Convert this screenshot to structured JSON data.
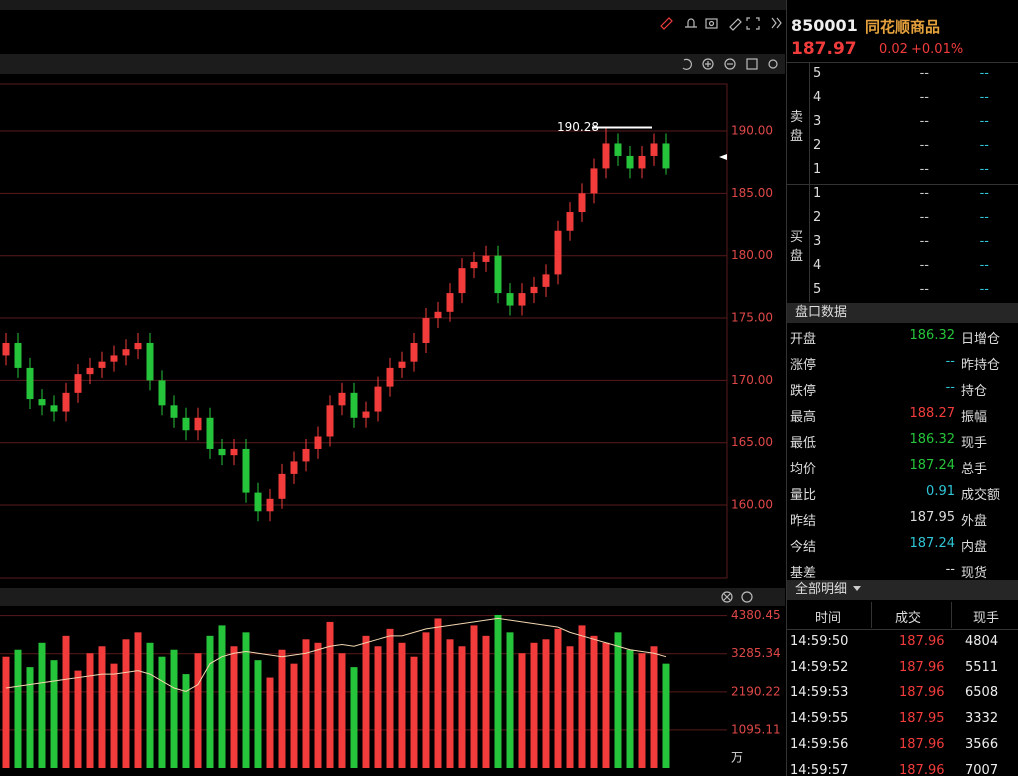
{
  "quote": {
    "code": "850001",
    "name": "同花顺商品",
    "price": "187.97",
    "change": "0.02",
    "change_pct": "+0.01%"
  },
  "order_book": {
    "sell_label": [
      "卖",
      "盘"
    ],
    "buy_label": [
      "买",
      "盘"
    ],
    "sell": [
      {
        "level": "5",
        "price": "--",
        "volume": "--"
      },
      {
        "level": "4",
        "price": "--",
        "volume": "--"
      },
      {
        "level": "3",
        "price": "--",
        "volume": "--"
      },
      {
        "level": "2",
        "price": "--",
        "volume": "--"
      },
      {
        "level": "1",
        "price": "--",
        "volume": "--"
      }
    ],
    "buy": [
      {
        "level": "1",
        "price": "--",
        "volume": "--"
      },
      {
        "level": "2",
        "price": "--",
        "volume": "--"
      },
      {
        "level": "3",
        "price": "--",
        "volume": "--"
      },
      {
        "level": "4",
        "price": "--",
        "volume": "--"
      },
      {
        "level": "5",
        "price": "--",
        "volume": "--"
      }
    ]
  },
  "stats_title": "盘口数据",
  "stats": [
    {
      "label": "开盘",
      "value": "186.32",
      "label2": "日增仓",
      "color": "#26c43a"
    },
    {
      "label": "涨停",
      "value": "--",
      "label2": "昨持仓",
      "color": "#2fc6d6"
    },
    {
      "label": "跌停",
      "value": "--",
      "label2": "持仓",
      "color": "#2fc6d6"
    },
    {
      "label": "最高",
      "value": "188.27",
      "label2": "振幅",
      "color": "#f23c3c"
    },
    {
      "label": "最低",
      "value": "186.32",
      "label2": "现手",
      "color": "#26c43a"
    },
    {
      "label": "均价",
      "value": "187.24",
      "label2": "总手",
      "color": "#26c43a"
    },
    {
      "label": "量比",
      "value": "0.91",
      "label2": "成交额",
      "color": "#2fc6d6"
    },
    {
      "label": "昨结",
      "value": "187.95",
      "label2": "外盘",
      "color": "#dddddd"
    },
    {
      "label": "今结",
      "value": "187.24",
      "label2": "内盘",
      "color": "#2fc6d6"
    },
    {
      "label": "基差",
      "value": "--",
      "label2": "现货",
      "color": "#dddddd"
    }
  ],
  "detail_title": "全部明细",
  "detail_headers": [
    "时间",
    "成交",
    "现手"
  ],
  "detail_rows": [
    [
      "14:59:50",
      "187.96",
      "4804"
    ],
    [
      "14:59:52",
      "187.96",
      "5511"
    ],
    [
      "14:59:53",
      "187.96",
      "6508"
    ],
    [
      "14:59:55",
      "187.95",
      "3332"
    ],
    [
      "14:59:56",
      "187.96",
      "3566"
    ],
    [
      "14:59:57",
      "187.96",
      "7007"
    ]
  ],
  "chart_data": [
    {
      "type": "candlestick",
      "up_color": "#f23c3c",
      "down_color": "#26c43a",
      "grid": true,
      "ylim": [
        154.15,
        193.69
      ],
      "yticks": [
        {
          "value": 160,
          "label": "160.00"
        },
        {
          "value": 165,
          "label": "165.00"
        },
        {
          "value": 170,
          "label": "170.00"
        },
        {
          "value": 175,
          "label": "175.00"
        },
        {
          "value": 180,
          "label": "180.00"
        },
        {
          "value": 185,
          "label": "185.00"
        },
        {
          "value": 190,
          "label": "190.00"
        }
      ],
      "max_marker": {
        "value": 190.28,
        "label": "190.28"
      },
      "open": [
        172,
        173,
        171,
        168.5,
        168,
        167.5,
        169,
        170.5,
        171,
        171.5,
        172,
        172.5,
        173,
        170,
        168,
        167,
        166,
        167,
        164.5,
        164,
        164.5,
        161,
        159.5,
        160.5,
        162.5,
        163.5,
        164.5,
        165.5,
        168,
        169,
        167,
        167.5,
        169.5,
        171,
        171.5,
        173,
        175,
        175.5,
        177,
        179,
        179.5,
        180,
        177,
        176,
        177,
        177.5,
        178.5,
        182,
        183.5,
        185,
        187,
        189,
        188,
        187,
        188,
        189
      ],
      "close": [
        173,
        171,
        168.5,
        168,
        167.5,
        169,
        170.5,
        171,
        171.5,
        172,
        172.5,
        173,
        170,
        168,
        167,
        166,
        167,
        164.5,
        164,
        164.5,
        161,
        159.5,
        160.5,
        162.5,
        163.5,
        164.5,
        165.5,
        168,
        169,
        167,
        167.5,
        169.5,
        171,
        171.5,
        173,
        175,
        175.5,
        177,
        179,
        179.5,
        180,
        177,
        176,
        177,
        177.5,
        178.5,
        182,
        183.5,
        185,
        187,
        189,
        188,
        187,
        188,
        189,
        187
      ],
      "high": [
        173.8,
        173.8,
        171.8,
        169.3,
        168.8,
        169.8,
        171.3,
        171.8,
        172.3,
        172.8,
        173.3,
        173.8,
        173.8,
        170.8,
        168.8,
        167.8,
        167.8,
        167.8,
        165.3,
        165.3,
        165.3,
        161.8,
        161.3,
        163.3,
        164.3,
        165.3,
        166.3,
        168.8,
        169.8,
        169.8,
        168.3,
        170.3,
        171.8,
        172.3,
        173.8,
        175.8,
        176.3,
        177.8,
        179.8,
        180.3,
        180.8,
        180.8,
        177.8,
        177.8,
        178.3,
        179.3,
        182.8,
        184.3,
        185.8,
        187.8,
        190.28,
        189.8,
        188.8,
        188.8,
        189.8,
        189.8
      ],
      "low": [
        171.2,
        170.2,
        167.7,
        167.2,
        166.7,
        166.7,
        168.2,
        169.7,
        170.2,
        170.7,
        171.2,
        171.7,
        169.2,
        167.2,
        166.2,
        165.2,
        165.2,
        163.7,
        163.2,
        163.2,
        160.2,
        158.7,
        158.7,
        159.7,
        161.7,
        162.7,
        163.7,
        164.7,
        167.2,
        166.2,
        166.2,
        166.7,
        168.7,
        170.2,
        170.7,
        172.2,
        174.2,
        174.7,
        176.2,
        178.2,
        178.7,
        176.2,
        175.2,
        175.2,
        176.2,
        176.7,
        177.7,
        181.2,
        182.7,
        184.2,
        186.2,
        187.2,
        186.2,
        186.2,
        187.2,
        186.5
      ]
    },
    {
      "type": "volume",
      "line_color": "#f2d6b0",
      "grid": true,
      "y_unit": "万",
      "ylim": [
        0,
        4600
      ],
      "yticks": [
        1095.11,
        2190.22,
        3285.34,
        4380.45
      ],
      "values": [
        3200,
        3400,
        2900,
        3600,
        3100,
        3800,
        2800,
        3300,
        3500,
        3000,
        3700,
        3900,
        3600,
        3200,
        3400,
        2700,
        3300,
        3800,
        4100,
        3500,
        3900,
        3100,
        2600,
        3400,
        3000,
        3700,
        3600,
        4200,
        3300,
        2900,
        3800,
        3500,
        4000,
        3600,
        3200,
        3900,
        4300,
        3700,
        3500,
        4100,
        3800,
        4400,
        3900,
        3300,
        3600,
        3700,
        4000,
        3500,
        4100,
        3800,
        3600,
        3900,
        3400,
        3300,
        3500,
        3000
      ],
      "line_values": [
        2300,
        2350,
        2400,
        2450,
        2500,
        2550,
        2600,
        2650,
        2700,
        2700,
        2750,
        2800,
        2700,
        2500,
        2300,
        2200,
        2400,
        3000,
        3200,
        3300,
        3350,
        3300,
        3250,
        3200,
        3250,
        3300,
        3400,
        3500,
        3550,
        3500,
        3600,
        3700,
        3800,
        3800,
        3900,
        4000,
        4050,
        4100,
        4150,
        4200,
        4250,
        4300,
        4250,
        4200,
        4150,
        4100,
        4050,
        3900,
        3800,
        3700,
        3600,
        3500,
        3400,
        3350,
        3300,
        3200
      ]
    }
  ]
}
